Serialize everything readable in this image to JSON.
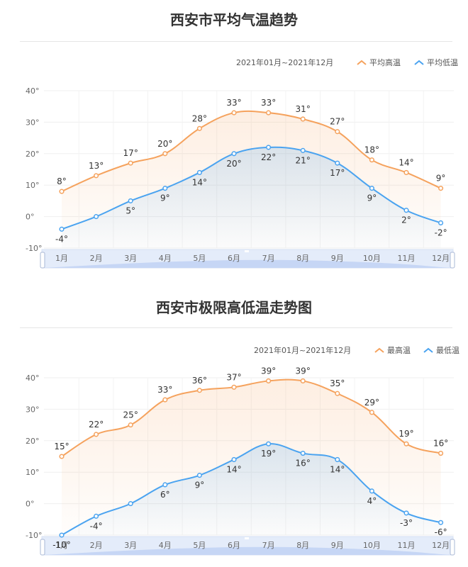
{
  "chart_data": [
    {
      "type": "line",
      "title": "西安市平均气温趋势",
      "date_range": "2021年01月~2021年12月",
      "categories": [
        "1月",
        "2月",
        "3月",
        "4月",
        "5月",
        "6月",
        "7月",
        "8月",
        "9月",
        "10月",
        "11月",
        "12月"
      ],
      "y_ticks": [
        "40°",
        "30°",
        "20°",
        "10°",
        "0°",
        "-10°"
      ],
      "ylim": [
        -10,
        40
      ],
      "grid": true,
      "legend_position": "top-right",
      "series": [
        {
          "name": "平均高温",
          "color": "#f5a25d",
          "values": [
            8,
            13,
            17,
            20,
            28,
            33,
            33,
            31,
            27,
            18,
            14,
            9
          ],
          "labels": [
            "8°",
            "13°",
            "17°",
            "20°",
            "28°",
            "33°",
            "33°",
            "31°",
            "27°",
            "18°",
            "14°",
            "9°"
          ]
        },
        {
          "name": "平均低温",
          "color": "#4aa3f0",
          "values": [
            -4,
            0,
            5,
            9,
            14,
            20,
            22,
            21,
            17,
            9,
            2,
            -2
          ],
          "labels": [
            "-4°",
            "",
            "5°",
            "9°",
            "14°",
            "20°",
            "22°",
            "21°",
            "17°",
            "9°",
            "2°",
            "-2°"
          ]
        }
      ]
    },
    {
      "type": "line",
      "title": "西安市极限高低温走势图",
      "date_range": "2021年01月~2021年12月",
      "categories": [
        "1月",
        "2月",
        "3月",
        "4月",
        "5月",
        "6月",
        "7月",
        "8月",
        "9月",
        "10月",
        "11月",
        "12月"
      ],
      "y_ticks": [
        "40°",
        "30°",
        "20°",
        "10°",
        "0°",
        "-10°"
      ],
      "ylim": [
        -10,
        40
      ],
      "grid": true,
      "legend_position": "top-right",
      "series": [
        {
          "name": "最高温",
          "color": "#f5a25d",
          "values": [
            15,
            22,
            25,
            33,
            36,
            37,
            39,
            39,
            35,
            29,
            19,
            16
          ],
          "labels": [
            "15°",
            "22°",
            "25°",
            "33°",
            "36°",
            "37°",
            "39°",
            "39°",
            "35°",
            "29°",
            "19°",
            "16°"
          ]
        },
        {
          "name": "最低温",
          "color": "#4aa3f0",
          "values": [
            -10,
            -4,
            0,
            6,
            9,
            14,
            19,
            16,
            14,
            4,
            -3,
            -6
          ],
          "labels": [
            "-10°",
            "-4°",
            "",
            "6°",
            "9°",
            "14°",
            "19°",
            "16°",
            "14°",
            "4°",
            "-3°",
            "-6°"
          ]
        }
      ]
    }
  ]
}
